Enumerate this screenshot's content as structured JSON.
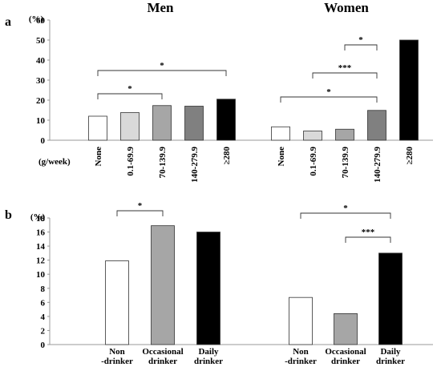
{
  "panel_a": {
    "label": "a",
    "y_unit": "(%)",
    "x_unit": "(g/week)",
    "colors": [
      "#ffffff",
      "#d9d9d9",
      "#a6a6a6",
      "#808080",
      "#000000"
    ]
  },
  "panel_b": {
    "label": "b",
    "y_unit": "(%)",
    "colors": [
      "#ffffff",
      "#a6a6a6",
      "#000000"
    ]
  },
  "chart_data": [
    {
      "type": "bar",
      "panel": "a",
      "title": "Men",
      "categories": [
        "None",
        "0.1-69.9",
        "70-139.9",
        "140-279.9",
        "≥280"
      ],
      "values": [
        12,
        13.8,
        17.3,
        17,
        20.5
      ],
      "ylim": [
        0,
        60
      ],
      "yticks": [
        0,
        10,
        20,
        30,
        40,
        50,
        60
      ],
      "significance": [
        {
          "from": "None",
          "to": "≥280",
          "label": "*"
        },
        {
          "from": "None",
          "to": "70-139.9",
          "label": "*"
        }
      ]
    },
    {
      "type": "bar",
      "panel": "a",
      "title": "Women",
      "categories": [
        "None",
        "0.1-69.9",
        "70-139.9",
        "140-279.9",
        "≥280"
      ],
      "values": [
        6.7,
        4.6,
        5.5,
        14.9,
        50
      ],
      "ylim": [
        0,
        60
      ],
      "yticks": [
        0,
        10,
        20,
        30,
        40,
        50,
        60
      ],
      "significance": [
        {
          "from": "70-139.9",
          "to": "140-279.9",
          "label": "*"
        },
        {
          "from": "0.1-69.9",
          "to": "140-279.9",
          "label": "***"
        },
        {
          "from": "None",
          "to": "140-279.9",
          "label": "*"
        }
      ]
    },
    {
      "type": "bar",
      "panel": "b",
      "title": "",
      "categories": [
        [
          "Non",
          "-drinker"
        ],
        [
          "Occasional",
          "drinker"
        ],
        [
          "Daily",
          "drinker"
        ]
      ],
      "series": [
        {
          "values": [
            11.9,
            16.9,
            16
          ]
        },
        {
          "values": [
            6.7,
            4.4,
            13
          ]
        }
      ],
      "ylim": [
        0,
        18
      ],
      "yticks": [
        0,
        2,
        4,
        6,
        8,
        10,
        12,
        14,
        16,
        18
      ],
      "significance": [
        {
          "group": 0,
          "from": 0,
          "to": 1,
          "label": "*"
        },
        {
          "group": 1,
          "from": 0,
          "to": 2,
          "label": "*"
        },
        {
          "group": 1,
          "from": 1,
          "to": 2,
          "label": "***"
        }
      ]
    }
  ]
}
